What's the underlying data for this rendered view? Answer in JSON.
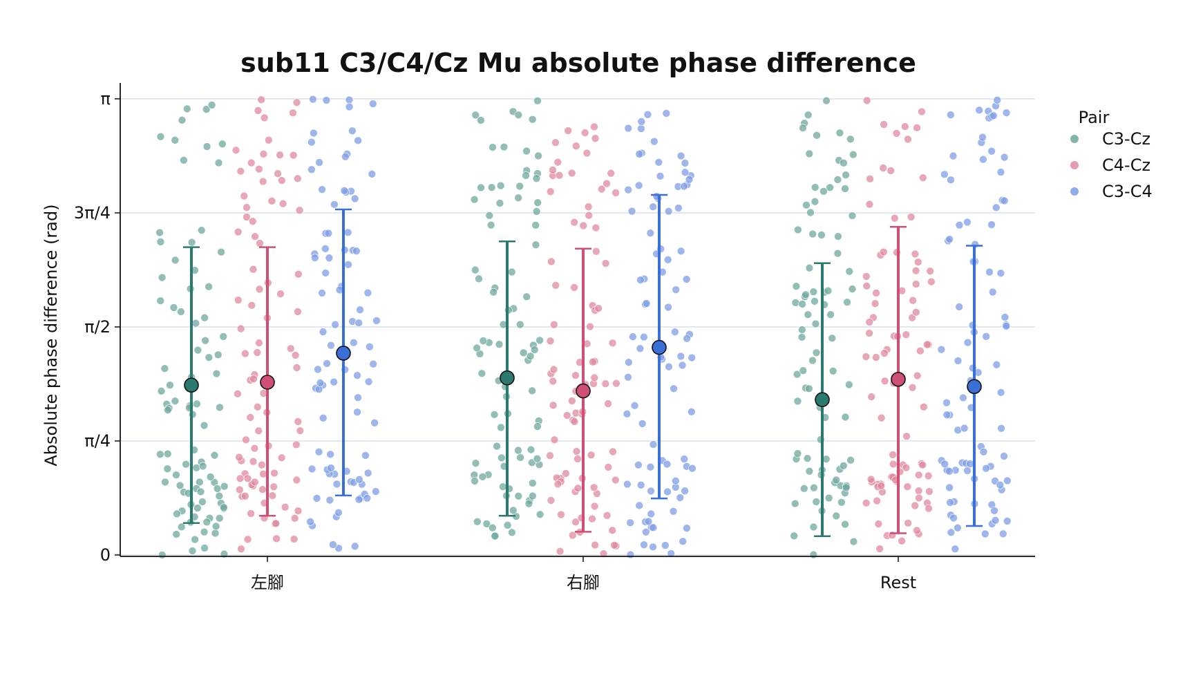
{
  "chart_data": {
    "type": "scatter",
    "title": "sub11 C3/C4/Cz Mu absolute phase difference",
    "xlabel": "",
    "ylabel": "Absolute phase difference (rad)",
    "categories": [
      "左腳",
      "右腳",
      "Rest"
    ],
    "ylim": [
      0,
      3.14159
    ],
    "yticks": [
      {
        "value": 0,
        "label": "0"
      },
      {
        "value": 0.7854,
        "label": "π/4"
      },
      {
        "value": 1.5708,
        "label": "π/2"
      },
      {
        "value": 2.3562,
        "label": "3π/4"
      },
      {
        "value": 3.14159,
        "label": "π"
      }
    ],
    "grid": "horizontal",
    "legend": {
      "title": "Pair",
      "placement": "right",
      "entries": [
        "C3-Cz",
        "C4-Cz",
        "C3-C4"
      ]
    },
    "series": [
      {
        "name": "C3-Cz",
        "color": "#2b7a70",
        "point_color": "#6fa89f",
        "mean": [
          1.17,
          1.22,
          1.07
        ],
        "err_low": [
          0.22,
          0.27,
          0.13
        ],
        "err_high": [
          2.12,
          2.16,
          2.01
        ]
      },
      {
        "name": "C4-Cz",
        "color": "#d04f74",
        "point_color": "#e0899f",
        "mean": [
          1.19,
          1.13,
          1.21
        ],
        "err_low": [
          0.27,
          0.16,
          0.15
        ],
        "err_high": [
          2.12,
          2.11,
          2.26
        ]
      },
      {
        "name": "C3-C4",
        "color": "#3a6fd8",
        "point_color": "#7d9ee6",
        "mean": [
          1.39,
          1.43,
          1.16
        ],
        "err_low": [
          0.41,
          0.39,
          0.2
        ],
        "err_high": [
          2.38,
          2.48,
          2.13
        ]
      }
    ]
  }
}
